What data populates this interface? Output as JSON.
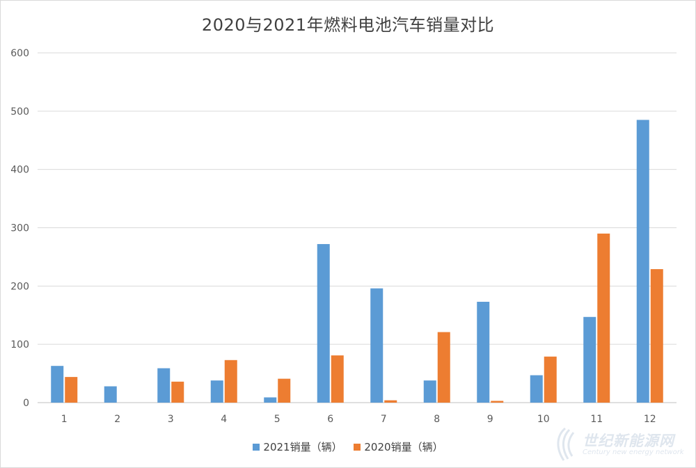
{
  "chart_data": {
    "type": "bar",
    "title": "2020与2021年燃料电池汽车销量对比",
    "categories": [
      "1",
      "2",
      "3",
      "4",
      "5",
      "6",
      "7",
      "8",
      "9",
      "10",
      "11",
      "12"
    ],
    "series": [
      {
        "name": "2021销量（辆）",
        "color": "#5b9bd5",
        "values": [
          63,
          28,
          59,
          38,
          9,
          272,
          196,
          38,
          173,
          47,
          147,
          485
        ]
      },
      {
        "name": "2020销量（辆）",
        "color": "#ed7d31",
        "values": [
          44,
          0,
          36,
          73,
          41,
          81,
          4,
          121,
          3,
          79,
          290,
          229
        ]
      }
    ],
    "ylim": [
      0,
      600
    ],
    "yticks": [
      0,
      100,
      200,
      300,
      400,
      500,
      600
    ],
    "grid": true,
    "legend_position": "bottom"
  },
  "watermark": {
    "text_cn": "世纪新能源网",
    "text_en": "Century new energy network"
  }
}
